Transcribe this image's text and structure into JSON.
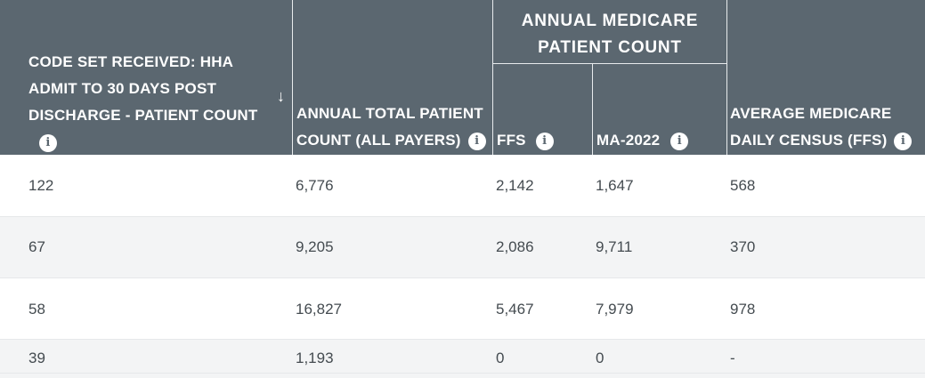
{
  "header": {
    "col1_label": "CODE SET RECEIVED: HHA ADMIT TO 30 DAYS POST DISCHARGE - PATIENT COUNT",
    "col2_label": "ANNUAL TOTAL PATIENT COUNT (ALL PAYERS)",
    "group_label": "ANNUAL MEDICARE PATIENT COUNT",
    "col3_label": "FFS",
    "col4_label": "MA-2022",
    "col5_label": "AVERAGE MEDICARE DAILY CENSUS (FFS)",
    "info_glyph": "i",
    "sort_glyph": "↓"
  },
  "rows": [
    {
      "c1": "122",
      "c2": "6,776",
      "c3": "2,142",
      "c4": "1,647",
      "c5": "568"
    },
    {
      "c1": "67",
      "c2": "9,205",
      "c3": "2,086",
      "c4": "9,711",
      "c5": "370"
    },
    {
      "c1": "58",
      "c2": "16,827",
      "c3": "5,467",
      "c4": "7,979",
      "c5": "978"
    },
    {
      "c1": "39",
      "c2": "1,193",
      "c3": "0",
      "c4": "0",
      "c5": "-"
    }
  ],
  "colors": {
    "header_bg": "#5b6770",
    "header_text": "#ffffff",
    "row_alt_bg": "#f3f4f5",
    "body_text": "#444b50"
  }
}
